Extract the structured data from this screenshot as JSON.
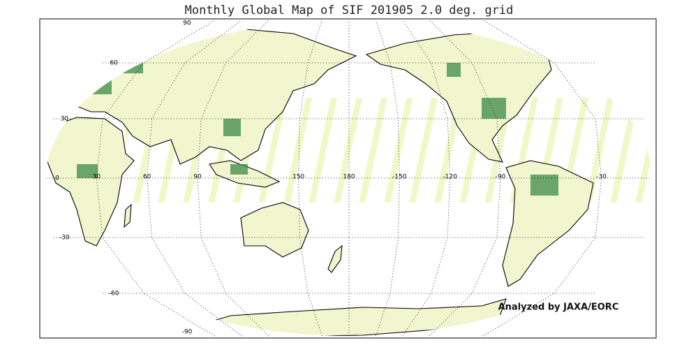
{
  "title": "Monthly Global Map of SIF 201905 2.0 deg. grid",
  "parallels": [
    90,
    60,
    30,
    0,
    -30,
    -60,
    -90
  ],
  "meridians": [
    30,
    60,
    90,
    150,
    180,
    -150,
    -120,
    -90,
    -30
  ],
  "credit": "Analyzed by JAXA/EORC"
}
